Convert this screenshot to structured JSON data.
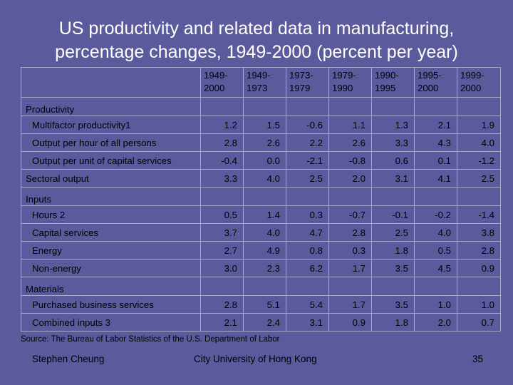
{
  "title_line1": "US productivity and related data in manufacturing,",
  "title_line2": "percentage changes, 1949-2000 (percent per year)",
  "columns": [
    {
      "l1": "1949-",
      "l2": "2000"
    },
    {
      "l1": "1949-",
      "l2": "1973"
    },
    {
      "l1": "1973-",
      "l2": "1979"
    },
    {
      "l1": "1979-",
      "l2": "1990"
    },
    {
      "l1": "1990-",
      "l2": "1995"
    },
    {
      "l1": "1995-",
      "l2": "2000"
    },
    {
      "l1": "1999-",
      "l2": "2000"
    }
  ],
  "rows": [
    {
      "type": "group",
      "label": "Productivity"
    },
    {
      "type": "data",
      "label": "Multifactor productivity1",
      "values": [
        "1.2",
        "1.5",
        "-0.6",
        "1.1",
        "1.3",
        "2.1",
        "1.9"
      ]
    },
    {
      "type": "data",
      "label": "Output per hour of all persons",
      "values": [
        "2.8",
        "2.6",
        "2.2",
        "2.6",
        "3.3",
        "4.3",
        "4.0"
      ]
    },
    {
      "type": "data",
      "label": "Output per unit of capital services",
      "values": [
        "-0.4",
        "0.0",
        "-2.1",
        "-0.8",
        "0.6",
        "0.1",
        "-1.2"
      ]
    },
    {
      "type": "data",
      "group_level": true,
      "label": "Sectoral output",
      "values": [
        "3.3",
        "4.0",
        "2.5",
        "2.0",
        "3.1",
        "4.1",
        "2.5"
      ]
    },
    {
      "type": "group",
      "label": "Inputs"
    },
    {
      "type": "data",
      "label": "Hours 2",
      "values": [
        "0.5",
        "1.4",
        "0.3",
        "-0.7",
        "-0.1",
        "-0.2",
        "-1.4"
      ]
    },
    {
      "type": "data",
      "label": "Capital services",
      "values": [
        "3.7",
        "4.0",
        "4.7",
        "2.8",
        "2.5",
        "4.0",
        "3.8"
      ]
    },
    {
      "type": "data",
      "label": "Energy",
      "values": [
        "2.7",
        "4.9",
        "0.8",
        "0.3",
        "1.8",
        "0.5",
        "2.8"
      ]
    },
    {
      "type": "data",
      "label": "Non-energy",
      "values": [
        "3.0",
        "2.3",
        "6.2",
        "1.7",
        "3.5",
        "4.5",
        "0.9"
      ]
    },
    {
      "type": "group",
      "label": "Materials"
    },
    {
      "type": "data",
      "label": "Purchased business services",
      "values": [
        "2.8",
        "5.1",
        "5.4",
        "1.7",
        "3.5",
        "1.0",
        "1.0"
      ]
    },
    {
      "type": "data",
      "label": "Combined inputs 3",
      "values": [
        "2.1",
        "2.4",
        "3.1",
        "0.9",
        "1.8",
        "2.0",
        "0.7"
      ]
    }
  ],
  "source": "Source: The Bureau of Labor Statistics of the U.S. Department of Labor",
  "footer": {
    "left": "Stephen Cheung",
    "center": "City University of Hong Kong",
    "right": "35"
  },
  "colors": {
    "background": "#5a5a9c",
    "title_text": "#ffffff",
    "body_text": "#000000",
    "grid": "#a8a8cc"
  }
}
